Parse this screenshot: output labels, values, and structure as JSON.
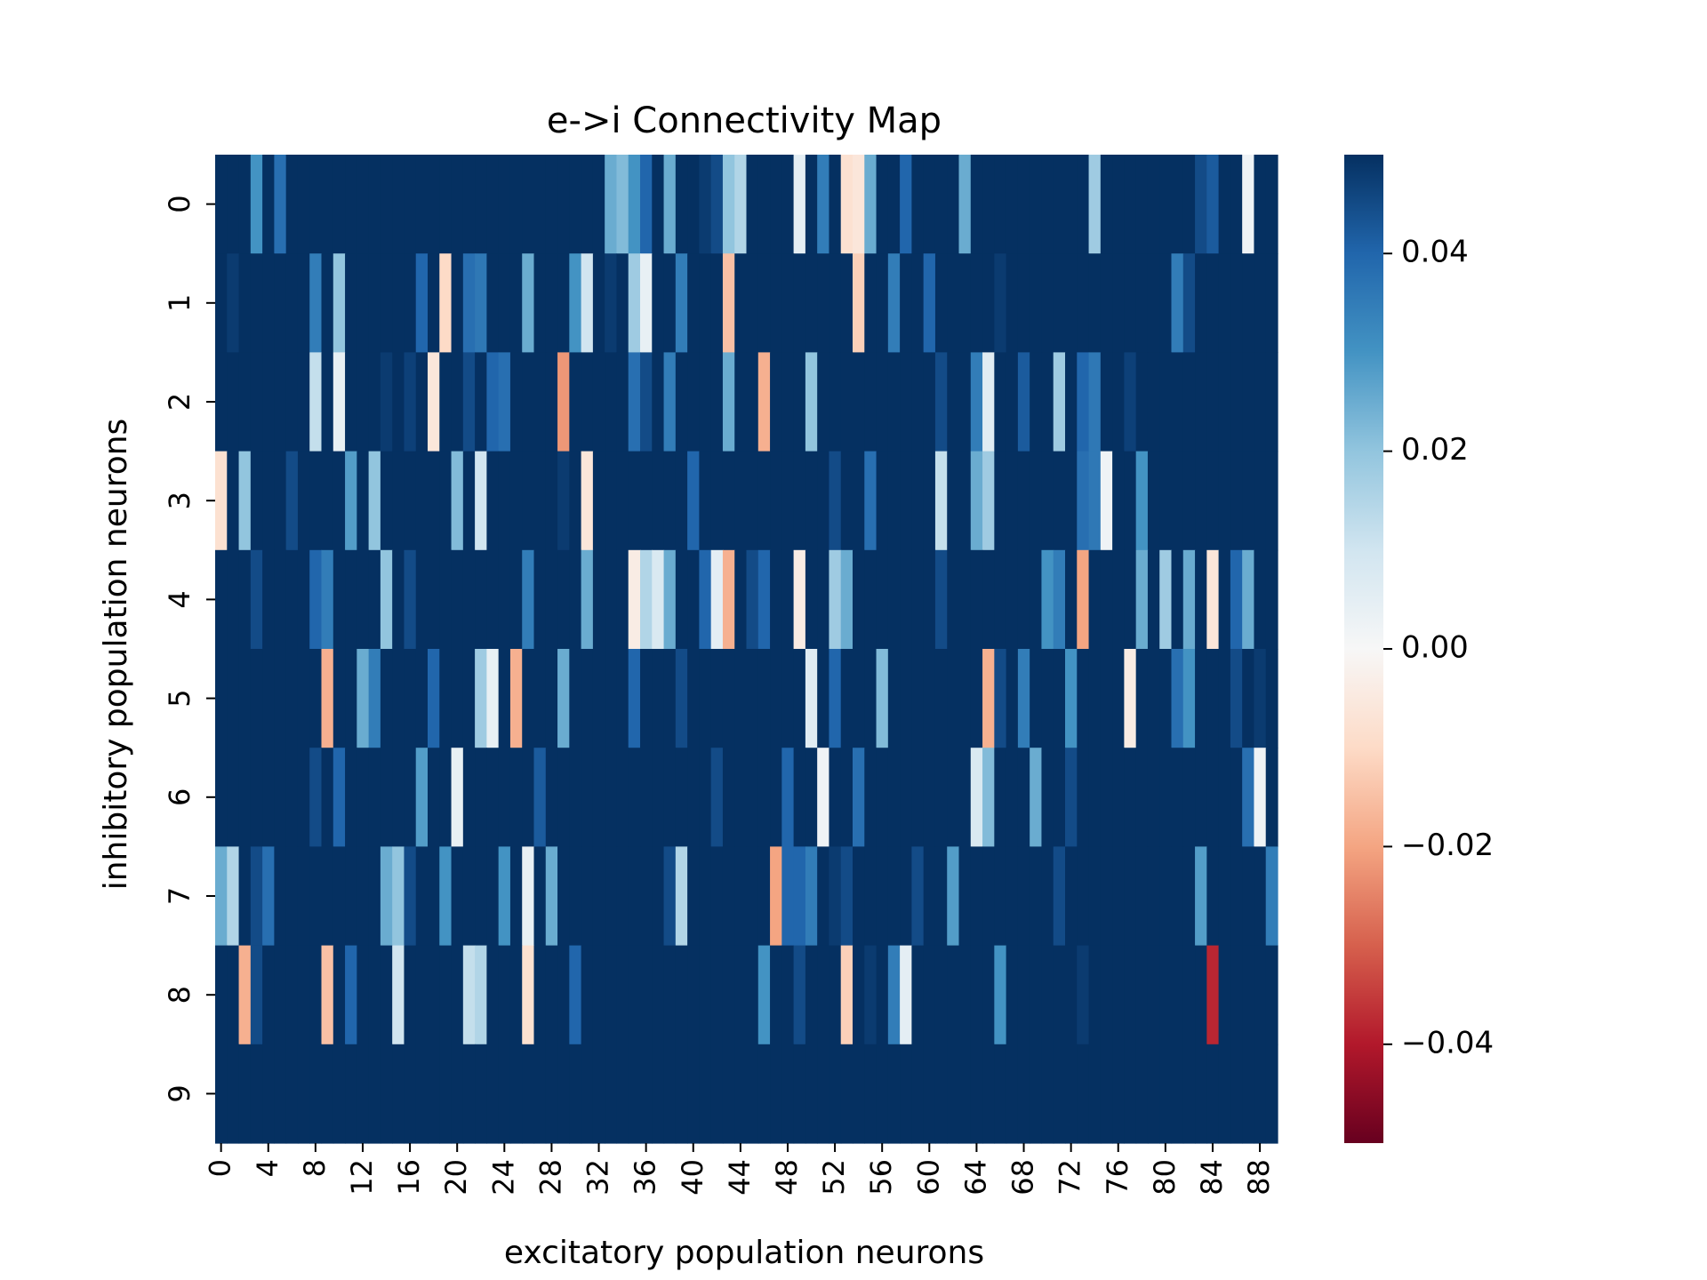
{
  "chart_data": {
    "type": "heatmap",
    "title": "e->i Connectivity Map",
    "xlabel": "excitatory population neurons",
    "ylabel": "inhibitory population neurons",
    "n_cols": 90,
    "n_rows": 10,
    "x_tick_labels": [
      "0",
      "4",
      "8",
      "12",
      "16",
      "20",
      "24",
      "28",
      "32",
      "36",
      "40",
      "44",
      "48",
      "52",
      "56",
      "60",
      "64",
      "68",
      "72",
      "76",
      "80",
      "84",
      "88"
    ],
    "y_tick_labels": [
      "0",
      "1",
      "2",
      "3",
      "4",
      "5",
      "6",
      "7",
      "8",
      "9"
    ],
    "colorbar": {
      "vmin": -0.05,
      "vmax": 0.05,
      "colormap": "RdBu",
      "tick_values": [
        0.04,
        0.02,
        0.0,
        -0.02,
        -0.04
      ],
      "tick_labels": [
        "0.04",
        "0.02",
        "0.00",
        "−0.02",
        "−0.04"
      ]
    },
    "default_value": 0.05,
    "cell_values": [
      [
        0,
        3,
        0.03
      ],
      [
        0,
        5,
        0.038
      ],
      [
        0,
        33,
        0.025
      ],
      [
        0,
        34,
        0.022
      ],
      [
        0,
        35,
        0.03
      ],
      [
        0,
        36,
        0.04
      ],
      [
        0,
        38,
        0.025
      ],
      [
        0,
        41,
        0.048
      ],
      [
        0,
        42,
        0.045
      ],
      [
        0,
        43,
        0.02
      ],
      [
        0,
        44,
        0.015
      ],
      [
        0,
        49,
        0.005
      ],
      [
        0,
        51,
        0.035
      ],
      [
        0,
        53,
        -0.008
      ],
      [
        0,
        54,
        -0.006
      ],
      [
        0,
        55,
        0.025
      ],
      [
        0,
        58,
        0.04
      ],
      [
        0,
        63,
        0.025
      ],
      [
        0,
        74,
        0.018
      ],
      [
        0,
        83,
        0.045
      ],
      [
        0,
        84,
        0.042
      ],
      [
        0,
        87,
        0.002
      ],
      [
        1,
        1,
        0.048
      ],
      [
        1,
        8,
        0.035
      ],
      [
        1,
        10,
        0.02
      ],
      [
        1,
        17,
        0.04
      ],
      [
        1,
        19,
        -0.01
      ],
      [
        1,
        21,
        0.038
      ],
      [
        1,
        22,
        0.036
      ],
      [
        1,
        26,
        0.025
      ],
      [
        1,
        30,
        0.03
      ],
      [
        1,
        31,
        0.01
      ],
      [
        1,
        33,
        0.048
      ],
      [
        1,
        35,
        0.018
      ],
      [
        1,
        36,
        0.004
      ],
      [
        1,
        39,
        0.035
      ],
      [
        1,
        43,
        -0.015
      ],
      [
        1,
        54,
        -0.012
      ],
      [
        1,
        57,
        0.035
      ],
      [
        1,
        60,
        0.04
      ],
      [
        1,
        66,
        0.048
      ],
      [
        1,
        81,
        0.035
      ],
      [
        1,
        82,
        0.045
      ],
      [
        2,
        8,
        0.012
      ],
      [
        2,
        10,
        0.004
      ],
      [
        2,
        14,
        0.048
      ],
      [
        2,
        16,
        0.047
      ],
      [
        2,
        18,
        -0.006
      ],
      [
        2,
        21,
        0.045
      ],
      [
        2,
        23,
        0.04
      ],
      [
        2,
        24,
        0.038
      ],
      [
        2,
        29,
        -0.022
      ],
      [
        2,
        35,
        0.038
      ],
      [
        2,
        36,
        0.045
      ],
      [
        2,
        38,
        0.035
      ],
      [
        2,
        43,
        0.025
      ],
      [
        2,
        46,
        -0.018
      ],
      [
        2,
        50,
        0.02
      ],
      [
        2,
        61,
        0.045
      ],
      [
        2,
        64,
        0.035
      ],
      [
        2,
        65,
        0.006
      ],
      [
        2,
        68,
        0.042
      ],
      [
        2,
        71,
        0.018
      ],
      [
        2,
        73,
        0.04
      ],
      [
        2,
        74,
        0.036
      ],
      [
        2,
        77,
        0.047
      ],
      [
        3,
        0,
        -0.008
      ],
      [
        3,
        2,
        0.02
      ],
      [
        3,
        6,
        0.045
      ],
      [
        3,
        11,
        0.028
      ],
      [
        3,
        13,
        0.02
      ],
      [
        3,
        20,
        0.022
      ],
      [
        3,
        22,
        0.01
      ],
      [
        3,
        29,
        0.048
      ],
      [
        3,
        31,
        -0.006
      ],
      [
        3,
        40,
        0.04
      ],
      [
        3,
        52,
        0.045
      ],
      [
        3,
        55,
        0.038
      ],
      [
        3,
        61,
        0.012
      ],
      [
        3,
        64,
        0.025
      ],
      [
        3,
        65,
        0.018
      ],
      [
        3,
        73,
        0.038
      ],
      [
        3,
        74,
        0.036
      ],
      [
        3,
        75,
        0.002
      ],
      [
        3,
        78,
        0.03
      ],
      [
        4,
        3,
        0.045
      ],
      [
        4,
        8,
        0.04
      ],
      [
        4,
        9,
        0.035
      ],
      [
        4,
        14,
        0.02
      ],
      [
        4,
        16,
        0.045
      ],
      [
        4,
        26,
        0.035
      ],
      [
        4,
        31,
        0.025
      ],
      [
        4,
        35,
        -0.004
      ],
      [
        4,
        36,
        0.015
      ],
      [
        4,
        37,
        0.008
      ],
      [
        4,
        38,
        0.025
      ],
      [
        4,
        41,
        0.04
      ],
      [
        4,
        42,
        0.005
      ],
      [
        4,
        43,
        -0.018
      ],
      [
        4,
        45,
        0.045
      ],
      [
        4,
        46,
        0.04
      ],
      [
        4,
        49,
        -0.004
      ],
      [
        4,
        52,
        0.018
      ],
      [
        4,
        53,
        0.025
      ],
      [
        4,
        61,
        0.045
      ],
      [
        4,
        70,
        0.03
      ],
      [
        4,
        71,
        0.035
      ],
      [
        4,
        73,
        -0.02
      ],
      [
        4,
        78,
        0.025
      ],
      [
        4,
        80,
        0.018
      ],
      [
        4,
        82,
        0.025
      ],
      [
        4,
        84,
        -0.006
      ],
      [
        4,
        86,
        0.04
      ],
      [
        4,
        87,
        0.025
      ],
      [
        5,
        9,
        -0.018
      ],
      [
        5,
        12,
        0.025
      ],
      [
        5,
        13,
        0.035
      ],
      [
        5,
        18,
        0.04
      ],
      [
        5,
        22,
        0.018
      ],
      [
        5,
        23,
        0.004
      ],
      [
        5,
        25,
        -0.018
      ],
      [
        5,
        29,
        0.025
      ],
      [
        5,
        35,
        0.04
      ],
      [
        5,
        39,
        0.045
      ],
      [
        5,
        50,
        0.006
      ],
      [
        5,
        52,
        0.04
      ],
      [
        5,
        56,
        0.022
      ],
      [
        5,
        65,
        -0.018
      ],
      [
        5,
        66,
        0.045
      ],
      [
        5,
        68,
        0.035
      ],
      [
        5,
        72,
        0.03
      ],
      [
        5,
        77,
        -0.004
      ],
      [
        5,
        81,
        0.038
      ],
      [
        5,
        82,
        0.03
      ],
      [
        5,
        86,
        0.045
      ],
      [
        5,
        88,
        0.048
      ],
      [
        6,
        8,
        0.045
      ],
      [
        6,
        10,
        0.04
      ],
      [
        6,
        17,
        0.028
      ],
      [
        6,
        20,
        0.004
      ],
      [
        6,
        27,
        0.042
      ],
      [
        6,
        42,
        0.045
      ],
      [
        6,
        48,
        0.04
      ],
      [
        6,
        51,
        0.002
      ],
      [
        6,
        54,
        0.038
      ],
      [
        6,
        64,
        0.008
      ],
      [
        6,
        65,
        0.022
      ],
      [
        6,
        69,
        0.025
      ],
      [
        6,
        72,
        0.045
      ],
      [
        6,
        87,
        0.038
      ],
      [
        6,
        88,
        0.002
      ],
      [
        7,
        0,
        0.025
      ],
      [
        7,
        1,
        0.015
      ],
      [
        7,
        3,
        0.045
      ],
      [
        7,
        4,
        0.038
      ],
      [
        7,
        14,
        0.025
      ],
      [
        7,
        15,
        0.02
      ],
      [
        7,
        16,
        0.045
      ],
      [
        7,
        19,
        0.03
      ],
      [
        7,
        24,
        0.03
      ],
      [
        7,
        26,
        0.004
      ],
      [
        7,
        28,
        0.025
      ],
      [
        7,
        38,
        0.045
      ],
      [
        7,
        39,
        0.015
      ],
      [
        7,
        47,
        -0.02
      ],
      [
        7,
        48,
        0.04
      ],
      [
        7,
        49,
        0.04
      ],
      [
        7,
        50,
        0.035
      ],
      [
        7,
        52,
        0.048
      ],
      [
        7,
        53,
        0.045
      ],
      [
        7,
        59,
        0.045
      ],
      [
        7,
        62,
        0.028
      ],
      [
        7,
        71,
        0.045
      ],
      [
        7,
        83,
        0.028
      ],
      [
        7,
        89,
        0.035
      ],
      [
        8,
        2,
        -0.018
      ],
      [
        8,
        3,
        0.045
      ],
      [
        8,
        9,
        -0.015
      ],
      [
        8,
        11,
        0.04
      ],
      [
        8,
        15,
        0.01
      ],
      [
        8,
        21,
        0.012
      ],
      [
        8,
        22,
        0.015
      ],
      [
        8,
        26,
        -0.008
      ],
      [
        8,
        30,
        0.04
      ],
      [
        8,
        46,
        0.03
      ],
      [
        8,
        49,
        0.045
      ],
      [
        8,
        53,
        -0.012
      ],
      [
        8,
        55,
        0.048
      ],
      [
        8,
        57,
        0.035
      ],
      [
        8,
        58,
        0.005
      ],
      [
        8,
        66,
        0.03
      ],
      [
        8,
        73,
        0.048
      ],
      [
        8,
        84,
        -0.038
      ]
    ]
  }
}
